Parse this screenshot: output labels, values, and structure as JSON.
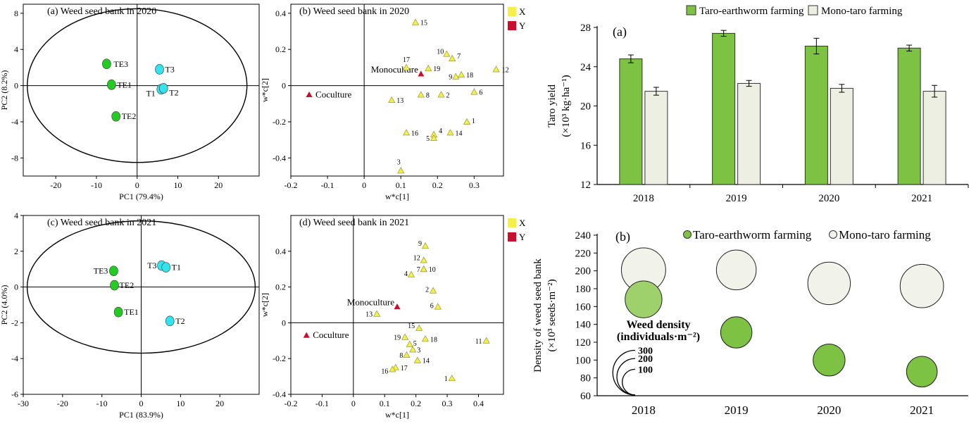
{
  "colors": {
    "taro_earthworm": "#7DC242",
    "mono_taro": "#EEEFE3",
    "bubble_mono": "#F1F2EA",
    "bubble_te_2018": "#9ED06B",
    "ordination_te": "#22CC22",
    "ordination_t": "#33E3EE",
    "x_var": "#F5EF4A",
    "y_var": "#C8102E",
    "axis": "#000000"
  },
  "chart_data": [
    {
      "id": "pca-2020",
      "type": "scatter",
      "title": "(a) Weed seed bank in 2020",
      "xlabel": "PC1 (79.4%)",
      "ylabel": "PC2 (8.2%)",
      "xlim": [
        -28,
        30
      ],
      "ylim": [
        -10,
        9
      ],
      "xticks": [
        "-20",
        "-10",
        "0",
        "10",
        "20"
      ],
      "xtick_values": [
        -20,
        -10,
        0,
        10,
        20
      ],
      "yticks": [
        "8",
        "4",
        "0",
        "-4",
        "-8"
      ],
      "ytick_values": [
        8,
        4,
        0,
        -4,
        -8
      ],
      "ellipse": {
        "rx": 27,
        "ry": 8.5
      },
      "points": [
        {
          "label": "TE3",
          "x": -7.5,
          "y": 2.4,
          "group": "TE"
        },
        {
          "label": "TE1",
          "x": -6.3,
          "y": 0.1,
          "group": "TE"
        },
        {
          "label": "TE2",
          "x": -5.2,
          "y": -3.4,
          "group": "TE"
        },
        {
          "label": "T3",
          "x": 5.5,
          "y": 1.8,
          "group": "T"
        },
        {
          "label": "T1",
          "x": 5.9,
          "y": -0.4,
          "group": "T"
        },
        {
          "label": "T2",
          "x": 6.5,
          "y": -0.3,
          "group": "T"
        }
      ]
    },
    {
      "id": "plsda-2020",
      "type": "scatter",
      "title": "(b) Weed seed bank in 2020",
      "xlabel": "w*c[1]",
      "ylabel": "w*c[2]",
      "xlim": [
        -0.2,
        0.38
      ],
      "ylim": [
        -0.5,
        0.45
      ],
      "xticks": [
        "-0.2",
        "-0.1",
        "0",
        "0.1",
        "0.2",
        "0.3"
      ],
      "xtick_values": [
        -0.2,
        -0.1,
        0,
        0.1,
        0.2,
        0.3
      ],
      "yticks": [
        "0.4",
        "0.2",
        "0",
        "-0.2",
        "-0.4"
      ],
      "ytick_values": [
        0.4,
        0.2,
        0,
        -0.2,
        -0.4
      ],
      "legend": [
        {
          "label": "X",
          "key": "x_var"
        },
        {
          "label": "Y",
          "key": "y_var"
        }
      ],
      "y_points": [
        {
          "label": "Coculture",
          "x": -0.15,
          "y": -0.05
        },
        {
          "label": "Monoculture",
          "x": 0.155,
          "y": 0.065
        }
      ],
      "x_points": [
        {
          "label": "15",
          "x": 0.14,
          "y": 0.35
        },
        {
          "label": "17",
          "x": 0.115,
          "y": 0.1
        },
        {
          "label": "19",
          "x": 0.175,
          "y": 0.095
        },
        {
          "label": "10",
          "x": 0.225,
          "y": 0.175
        },
        {
          "label": "7",
          "x": 0.24,
          "y": 0.15
        },
        {
          "label": "9",
          "x": 0.25,
          "y": 0.05
        },
        {
          "label": "18",
          "x": 0.265,
          "y": 0.06
        },
        {
          "label": "12",
          "x": 0.36,
          "y": 0.09
        },
        {
          "label": "2",
          "x": 0.21,
          "y": -0.05
        },
        {
          "label": "6",
          "x": 0.3,
          "y": -0.035
        },
        {
          "label": "8",
          "x": 0.155,
          "y": -0.05
        },
        {
          "label": "13",
          "x": 0.075,
          "y": -0.08
        },
        {
          "label": "16",
          "x": 0.115,
          "y": -0.26
        },
        {
          "label": "4",
          "x": 0.19,
          "y": -0.27
        },
        {
          "label": "5",
          "x": 0.19,
          "y": -0.29
        },
        {
          "label": "14",
          "x": 0.235,
          "y": -0.26
        },
        {
          "label": "1",
          "x": 0.28,
          "y": -0.2
        },
        {
          "label": "3",
          "x": 0.1,
          "y": -0.47
        }
      ]
    },
    {
      "id": "yield",
      "type": "bar",
      "title": "(a)",
      "ylabel_line1": "Taro yield",
      "ylabel_line2": "(×10³ kg·ha⁻¹)",
      "categories": [
        "2018",
        "2019",
        "2020",
        "2021"
      ],
      "ylim": [
        12,
        28
      ],
      "yticks": [
        "28",
        "24",
        "20",
        "16",
        "12"
      ],
      "ytick_values": [
        28,
        24,
        20,
        16,
        12
      ],
      "series": [
        {
          "name": "Taro-earthworm farming",
          "key": "taro_earthworm",
          "values": [
            24.8,
            27.4,
            26.1,
            25.9
          ],
          "errors": [
            0.4,
            0.3,
            0.8,
            0.3
          ]
        },
        {
          "name": "Mono-taro farming",
          "key": "mono_taro",
          "values": [
            21.5,
            22.3,
            21.8,
            21.5
          ],
          "errors": [
            0.4,
            0.3,
            0.4,
            0.6
          ]
        }
      ]
    },
    {
      "id": "pca-2021",
      "type": "scatter",
      "title": "(c) Weed seed bank in 2021",
      "xlabel": "PC1 (83.9%)",
      "ylabel": "PC2 (4.0%)",
      "xlim": [
        -30,
        30
      ],
      "ylim": [
        -6,
        4
      ],
      "xticks": [
        "-30",
        "-20",
        "-10",
        "0",
        "10",
        "20"
      ],
      "xtick_values": [
        -30,
        -20,
        -10,
        0,
        10,
        20
      ],
      "yticks": [
        "4",
        "2",
        "0",
        "-2",
        "-4",
        "-6"
      ],
      "ytick_values": [
        4,
        2,
        0,
        -2,
        -4,
        -6
      ],
      "ellipse": {
        "rx": 29,
        "ry": 3.7
      },
      "points": [
        {
          "label": "TE3",
          "x": -7.0,
          "y": 0.9,
          "group": "TE"
        },
        {
          "label": "TE2",
          "x": -6.8,
          "y": 0.1,
          "group": "TE"
        },
        {
          "label": "TE1",
          "x": -5.8,
          "y": -1.4,
          "group": "TE"
        },
        {
          "label": "T3",
          "x": 5.2,
          "y": 1.2,
          "group": "T"
        },
        {
          "label": "T1",
          "x": 6.3,
          "y": 1.1,
          "group": "T"
        },
        {
          "label": "T2",
          "x": 7.3,
          "y": -1.9,
          "group": "T"
        }
      ]
    },
    {
      "id": "plsda-2021",
      "type": "scatter",
      "title": "(d) Weed seed bank in 2021",
      "xlabel": "w*c[1]",
      "ylabel": "w*c[2]",
      "xlim": [
        -0.2,
        0.48
      ],
      "ylim": [
        -0.4,
        0.6
      ],
      "xticks": [
        "-0.2",
        "-0.1",
        "0",
        "0.1",
        "0.2",
        "0.3",
        "0.4"
      ],
      "xtick_values": [
        -0.2,
        -0.1,
        0,
        0.1,
        0.2,
        0.3,
        0.4
      ],
      "yticks": [
        "0.4",
        "0.2",
        "0",
        "-0.2",
        "-0.4"
      ],
      "ytick_values": [
        0.4,
        0.2,
        0,
        -0.2,
        -0.4
      ],
      "legend": [
        {
          "label": "X",
          "key": "x_var"
        },
        {
          "label": "Y",
          "key": "y_var"
        }
      ],
      "y_points": [
        {
          "label": "Coculture",
          "x": -0.15,
          "y": -0.07
        },
        {
          "label": "Monoculture",
          "x": 0.14,
          "y": 0.09
        }
      ],
      "x_points": [
        {
          "label": "9",
          "x": 0.23,
          "y": 0.43
        },
        {
          "label": "12",
          "x": 0.225,
          "y": 0.35
        },
        {
          "label": "7",
          "x": 0.225,
          "y": 0.3
        },
        {
          "label": "10",
          "x": 0.225,
          "y": 0.3
        },
        {
          "label": "4",
          "x": 0.185,
          "y": 0.27
        },
        {
          "label": "2",
          "x": 0.255,
          "y": 0.18
        },
        {
          "label": "6",
          "x": 0.27,
          "y": 0.09
        },
        {
          "label": "13",
          "x": 0.075,
          "y": 0.05
        },
        {
          "label": "15",
          "x": 0.21,
          "y": -0.03
        },
        {
          "label": "19",
          "x": 0.165,
          "y": -0.08
        },
        {
          "label": "18",
          "x": 0.23,
          "y": -0.09
        },
        {
          "label": "5",
          "x": 0.18,
          "y": -0.12
        },
        {
          "label": "3",
          "x": 0.19,
          "y": -0.15
        },
        {
          "label": "8",
          "x": 0.17,
          "y": -0.18
        },
        {
          "label": "17",
          "x": 0.135,
          "y": -0.25
        },
        {
          "label": "16",
          "x": 0.125,
          "y": -0.26
        },
        {
          "label": "14",
          "x": 0.205,
          "y": -0.21
        },
        {
          "label": "1",
          "x": 0.315,
          "y": -0.31
        },
        {
          "label": "11",
          "x": 0.425,
          "y": -0.1
        }
      ]
    },
    {
      "id": "bubble",
      "type": "scatter",
      "title": "(b)",
      "ylabel_line1": "Density of weed seed bank",
      "ylabel_line2": "(×10³ seeds·m⁻²)",
      "categories": [
        "2018",
        "2019",
        "2020",
        "2021"
      ],
      "ylim": [
        60,
        240
      ],
      "yticks": [
        "240",
        "220",
        "200",
        "180",
        "160",
        "140",
        "120",
        "100",
        "80",
        "60"
      ],
      "ytick_values": [
        240,
        220,
        200,
        180,
        160,
        140,
        120,
        100,
        80,
        60
      ],
      "series": [
        {
          "name": "Taro-earthworm farming",
          "key": "taro_earthworm",
          "values": [
            168,
            131,
            100,
            87
          ],
          "weed_density": [
            180,
            130,
            135,
            125
          ]
        },
        {
          "name": "Mono-taro farming",
          "key": "mono_taro",
          "values": [
            201,
            201,
            186,
            183
          ],
          "weed_density": [
            260,
            210,
            240,
            250
          ]
        }
      ],
      "size_legend": {
        "title_line1": "Weed density",
        "title_line2": "(individuals·m⁻²)",
        "values": [
          300,
          200,
          100
        ],
        "labels": [
          "300",
          "200",
          "100"
        ]
      }
    }
  ]
}
